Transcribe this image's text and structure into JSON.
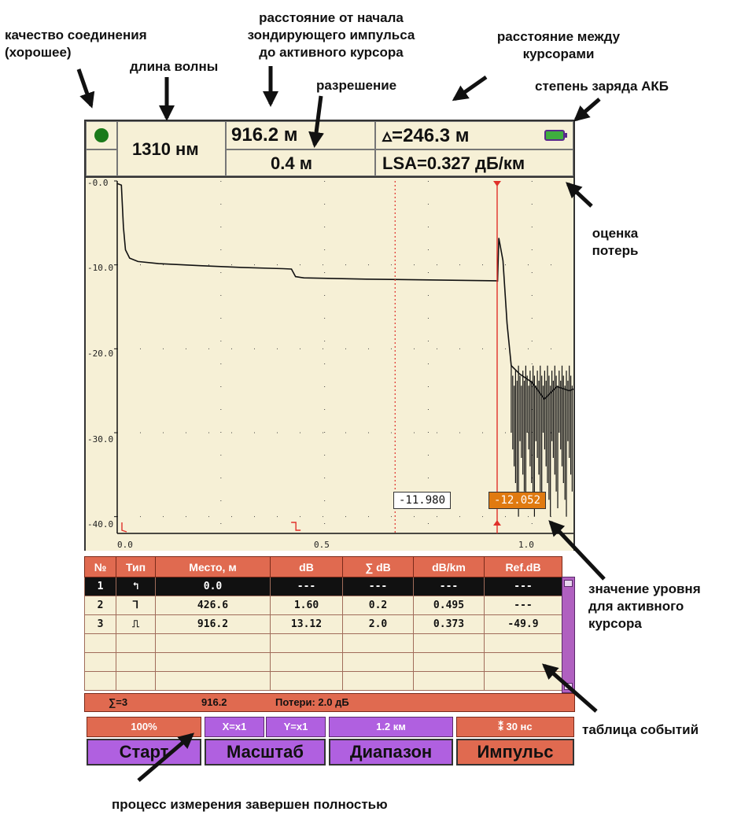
{
  "annotations": {
    "connection_quality": "качество соединения\n(хорошее)",
    "wavelength": "длина волны",
    "distance_from_start": "расстояние от начала\nзондирующего импульса\nдо активного курсора",
    "distance_between_cursors": "расстояние между\nкурсорами",
    "resolution": "разрешение",
    "battery": "степень заряда АКБ",
    "loss_estimate": "оценка\nпотерь",
    "active_cursor_level": "значение уровня\nдля активного\nкурсора",
    "events_table": "таблица событий",
    "measurement_done": "процесс измерения завершен полностью"
  },
  "header": {
    "wavelength": "1310 нм",
    "distance": "916.2 м",
    "resolution": "0.4 м",
    "delta": "▵=246.3 м",
    "lsa": "LSA=0.327 дБ/км"
  },
  "colors": {
    "screen_bg": "#f6f0d6",
    "accent_orange": "#e06a50",
    "accent_purple": "#b060e0",
    "trace": "#111111",
    "cursor": "#e0302a",
    "status_good": "#1a7a1a",
    "battery": "#3fae3f"
  },
  "chart_data": {
    "type": "line",
    "title": "",
    "xlabel": "",
    "ylabel": "",
    "xlim": [
      0,
      1.1
    ],
    "ylim": [
      -42,
      0
    ],
    "x_ticks": [
      "0.0",
      "0.5",
      "1.0"
    ],
    "y_ticks": [
      "-0.0",
      "-10.0",
      "-20.0",
      "-30.0",
      "-40.0"
    ],
    "grid": true,
    "series": [
      {
        "values": [
          [
            0.0,
            -0.3
          ],
          [
            0.01,
            -0.5
          ],
          [
            0.015,
            -5.5
          ],
          [
            0.02,
            -8.2
          ],
          [
            0.03,
            -9.2
          ],
          [
            0.05,
            -9.6
          ],
          [
            0.1,
            -9.85
          ],
          [
            0.2,
            -10.1
          ],
          [
            0.3,
            -10.3
          ],
          [
            0.4,
            -10.45
          ],
          [
            0.42,
            -10.5
          ],
          [
            0.43,
            -11.4
          ],
          [
            0.45,
            -11.55
          ],
          [
            0.6,
            -11.7
          ],
          [
            0.916,
            -11.9
          ],
          [
            0.917,
            -12.0
          ],
          [
            0.92,
            -6.8
          ],
          [
            0.93,
            -9.5
          ],
          [
            0.94,
            -17.0
          ],
          [
            0.95,
            -22.0
          ],
          [
            0.97,
            -23.0
          ],
          [
            1.0,
            -24.0
          ],
          [
            1.03,
            -26.0
          ],
          [
            1.06,
            -24.5
          ],
          [
            1.09,
            -25.0
          ],
          [
            1.1,
            -24.8
          ]
        ]
      }
    ],
    "cursors": [
      {
        "type": "passive",
        "x": 0.67,
        "value": "-11.980"
      },
      {
        "type": "active",
        "x": 0.916,
        "value": "-12.052"
      }
    ]
  },
  "table": {
    "headers": [
      "№",
      "Тип",
      "Место, м",
      "dB",
      "∑ dB",
      "dB/km",
      "Ref.dB"
    ],
    "rows": [
      {
        "num": "1",
        "icon": "begin-event-icon",
        "glyph": "↰",
        "place": "0.0",
        "db": "---",
        "sum": "---",
        "dbkm": "---",
        "ref": "---"
      },
      {
        "num": "2",
        "icon": "splice-event-icon",
        "glyph": "⅂",
        "place": "426.6",
        "db": "1.60",
        "sum": "0.2",
        "dbkm": "0.495",
        "ref": "---"
      },
      {
        "num": "3",
        "icon": "reflection-event-icon",
        "glyph": "⎍",
        "place": "916.2",
        "db": "13.12",
        "sum": "2.0",
        "dbkm": "0.373",
        "ref": "-49.9"
      }
    ],
    "summary": {
      "count": "∑=3",
      "length": "916.2",
      "loss": "Потери: 2.0 дБ"
    }
  },
  "buttons": {
    "progress": "100%",
    "start": "Старт",
    "scale_x": "X=x1",
    "scale_y": "Y=x1",
    "scale": "Масштаб",
    "range_value": "1.2 км",
    "range": "Диапазон",
    "pulse_value": "⁑ 30 нс",
    "pulse": "Импульс"
  }
}
